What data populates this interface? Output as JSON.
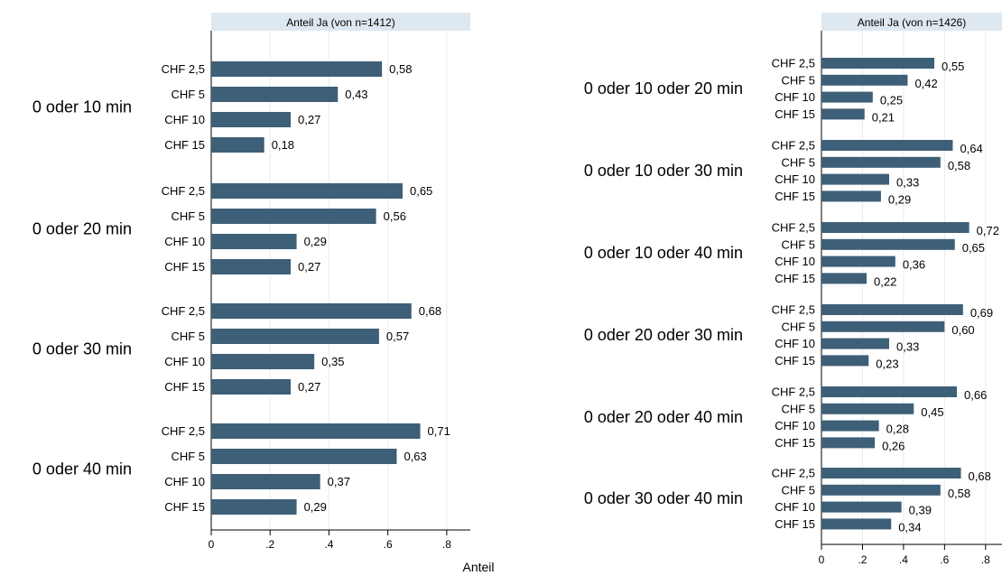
{
  "colors": {
    "bar": "#3e5f78",
    "header_bg": "#dde8f0",
    "grid": "#e4ecf2"
  },
  "chart_data": [
    {
      "type": "bar",
      "orientation": "horizontal",
      "title": "Anteil Ja (von n=1412)",
      "xlabel": "Anteil",
      "xlim": [
        0,
        0.88
      ],
      "xticks": [
        0,
        0.2,
        0.4,
        0.6,
        0.8
      ],
      "xtick_labels": [
        "0",
        ".2",
        ".4",
        ".6",
        ".8"
      ],
      "grid": true,
      "groups": [
        {
          "label": "0 oder 10 min",
          "bars": [
            {
              "category": "CHF 2,5",
              "value": 0.58,
              "label": "0,58"
            },
            {
              "category": "CHF 5",
              "value": 0.43,
              "label": "0,43"
            },
            {
              "category": "CHF 10",
              "value": 0.27,
              "label": "0,27"
            },
            {
              "category": "CHF 15",
              "value": 0.18,
              "label": "0,18"
            }
          ]
        },
        {
          "label": "0 oder 20 min",
          "bars": [
            {
              "category": "CHF 2,5",
              "value": 0.65,
              "label": "0,65"
            },
            {
              "category": "CHF 5",
              "value": 0.56,
              "label": "0,56"
            },
            {
              "category": "CHF 10",
              "value": 0.29,
              "label": "0,29"
            },
            {
              "category": "CHF 15",
              "value": 0.27,
              "label": "0,27"
            }
          ]
        },
        {
          "label": "0 oder 30 min",
          "bars": [
            {
              "category": "CHF 2,5",
              "value": 0.68,
              "label": "0,68"
            },
            {
              "category": "CHF 5",
              "value": 0.57,
              "label": "0,57"
            },
            {
              "category": "CHF 10",
              "value": 0.35,
              "label": "0,35"
            },
            {
              "category": "CHF 15",
              "value": 0.27,
              "label": "0,27"
            }
          ]
        },
        {
          "label": "0 oder 40 min",
          "bars": [
            {
              "category": "CHF 2,5",
              "value": 0.71,
              "label": "0,71"
            },
            {
              "category": "CHF 5",
              "value": 0.63,
              "label": "0,63"
            },
            {
              "category": "CHF 10",
              "value": 0.37,
              "label": "0,37"
            },
            {
              "category": "CHF 15",
              "value": 0.29,
              "label": "0,29"
            }
          ]
        }
      ]
    },
    {
      "type": "bar",
      "orientation": "horizontal",
      "title": "Anteil Ja (von n=1426)",
      "xlabel": "",
      "xlim": [
        0,
        0.88
      ],
      "xticks": [
        0,
        0.2,
        0.4,
        0.6,
        0.8
      ],
      "xtick_labels": [
        "0",
        ".2",
        ".4",
        ".6",
        ".8"
      ],
      "grid": true,
      "groups": [
        {
          "label": "0 oder 10 oder 20 min",
          "bars": [
            {
              "category": "CHF 2,5",
              "value": 0.55,
              "label": "0,55"
            },
            {
              "category": "CHF 5",
              "value": 0.42,
              "label": "0,42"
            },
            {
              "category": "CHF 10",
              "value": 0.25,
              "label": "0,25"
            },
            {
              "category": "CHF 15",
              "value": 0.21,
              "label": "0,21"
            }
          ]
        },
        {
          "label": "0 oder 10 oder 30 min",
          "bars": [
            {
              "category": "CHF 2,5",
              "value": 0.64,
              "label": "0,64"
            },
            {
              "category": "CHF 5",
              "value": 0.58,
              "label": "0,58"
            },
            {
              "category": "CHF 10",
              "value": 0.33,
              "label": "0,33"
            },
            {
              "category": "CHF 15",
              "value": 0.29,
              "label": "0,29"
            }
          ]
        },
        {
          "label": "0 oder 10 oder 40 min",
          "bars": [
            {
              "category": "CHF 2,5",
              "value": 0.72,
              "label": "0,72"
            },
            {
              "category": "CHF 5",
              "value": 0.65,
              "label": "0,65"
            },
            {
              "category": "CHF 10",
              "value": 0.36,
              "label": "0,36"
            },
            {
              "category": "CHF 15",
              "value": 0.22,
              "label": "0,22"
            }
          ]
        },
        {
          "label": "0 oder 20 oder 30 min",
          "bars": [
            {
              "category": "CHF 2,5",
              "value": 0.69,
              "label": "0,69"
            },
            {
              "category": "CHF 5",
              "value": 0.6,
              "label": "0,60"
            },
            {
              "category": "CHF 10",
              "value": 0.33,
              "label": "0,33"
            },
            {
              "category": "CHF 15",
              "value": 0.23,
              "label": "0,23"
            }
          ]
        },
        {
          "label": "0 oder 20 oder 40 min",
          "bars": [
            {
              "category": "CHF 2,5",
              "value": 0.66,
              "label": "0,66"
            },
            {
              "category": "CHF 5",
              "value": 0.45,
              "label": "0,45"
            },
            {
              "category": "CHF 10",
              "value": 0.28,
              "label": "0,28"
            },
            {
              "category": "CHF 15",
              "value": 0.26,
              "label": "0,26"
            }
          ]
        },
        {
          "label": "0 oder 30 oder 40 min",
          "bars": [
            {
              "category": "CHF 2,5",
              "value": 0.68,
              "label": "0,68"
            },
            {
              "category": "CHF 5",
              "value": 0.58,
              "label": "0,58"
            },
            {
              "category": "CHF 10",
              "value": 0.39,
              "label": "0,39"
            },
            {
              "category": "CHF 15",
              "value": 0.34,
              "label": "0,34"
            }
          ]
        }
      ]
    }
  ]
}
